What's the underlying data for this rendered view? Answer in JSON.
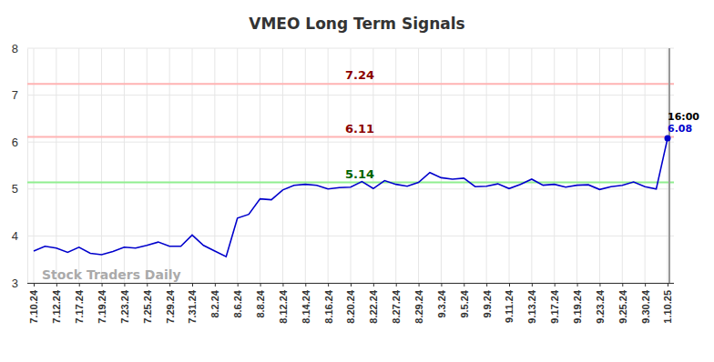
{
  "chart_data": {
    "type": "line",
    "title": "VMEO Long Term Signals",
    "watermark": "Stock Traders Daily",
    "categories": [
      "7.10.24",
      null,
      "7.12.24",
      null,
      "7.17.24",
      null,
      "7.19.24",
      null,
      "7.23.24",
      null,
      "7.25.24",
      null,
      "7.29.24",
      null,
      "7.31.24",
      null,
      "8.2.24",
      null,
      "8.6.24",
      null,
      "8.8.24",
      null,
      "8.12.24",
      null,
      "8.14.24",
      null,
      "8.16.24",
      null,
      "8.20.24",
      null,
      "8.22.24",
      null,
      "8.27.24",
      null,
      "8.29.24",
      null,
      "9.3.24",
      null,
      "9.5.24",
      null,
      "9.9.24",
      null,
      "9.11.24",
      null,
      "9.13.24",
      null,
      "9.17.24",
      null,
      "9.19.24",
      null,
      "9.23.24",
      null,
      "9.25.24",
      null,
      "9.30.24",
      null,
      "1.10.25"
    ],
    "values": [
      3.68,
      3.78,
      3.74,
      3.65,
      3.76,
      3.63,
      3.6,
      3.67,
      3.76,
      3.74,
      3.8,
      3.87,
      3.78,
      3.78,
      4.02,
      3.8,
      3.68,
      3.56,
      4.38,
      4.46,
      4.79,
      4.77,
      4.98,
      5.08,
      5.1,
      5.08,
      5.0,
      5.03,
      5.04,
      5.16,
      5.01,
      5.18,
      5.1,
      5.06,
      5.14,
      5.35,
      5.24,
      5.21,
      5.23,
      5.05,
      5.06,
      5.11,
      5.01,
      5.1,
      5.21,
      5.08,
      5.1,
      5.04,
      5.08,
      5.09,
      4.99,
      5.05,
      5.08,
      5.15,
      5.05,
      5.0,
      6.08
    ],
    "color": "#0000cc",
    "ylim": [
      3,
      8
    ],
    "yticks": [
      3,
      4,
      5,
      6,
      7,
      8
    ],
    "grid": true,
    "reference_lines": [
      {
        "value": 7.24,
        "color": "#ffb3b3",
        "label_color": "#8b0000"
      },
      {
        "value": 6.11,
        "color": "#ffb3b3",
        "label_color": "#8b0000"
      },
      {
        "value": 5.14,
        "color": "#90ee90",
        "label_color": "#006400"
      }
    ],
    "annotations": [
      "16:00"
    ]
  }
}
